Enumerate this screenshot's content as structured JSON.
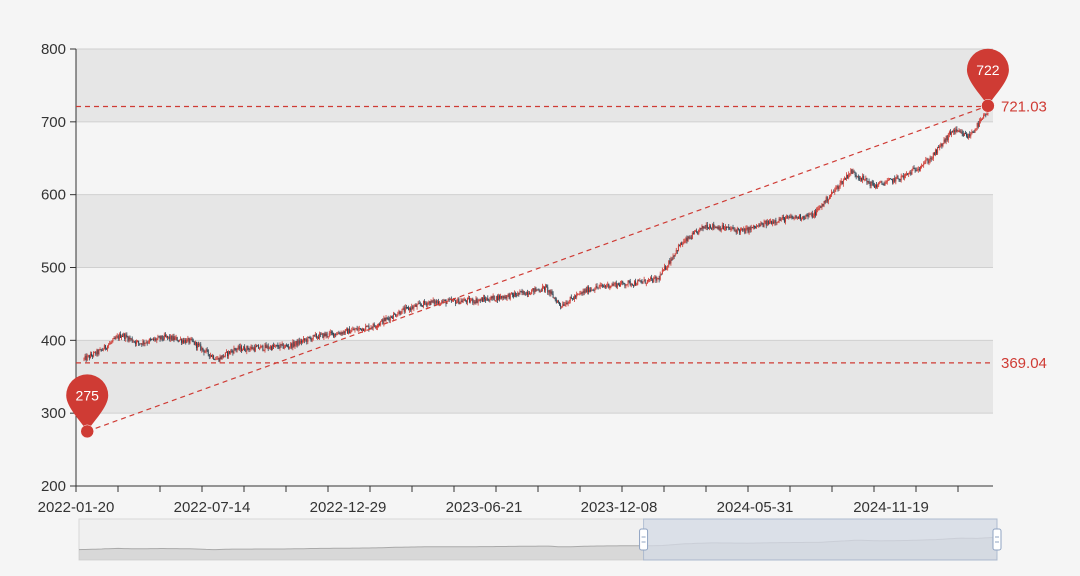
{
  "chart_data": {
    "type": "candlestick",
    "title": "",
    "xlabel": "",
    "ylabel": "",
    "ylim": [
      200,
      800
    ],
    "yticks": [
      200,
      300,
      400,
      500,
      600,
      700,
      800
    ],
    "grid": "alternating bands",
    "start_date": "2022-01-20",
    "end_date": "2025-04-17",
    "xtick_labels": [
      "2022-01-20",
      "2022-07-14",
      "2022-12-29",
      "2023-06-21",
      "2023-12-08",
      "2024-05-31",
      "2024-11-19"
    ],
    "colors": {
      "up": "#cf3b34",
      "down": "#2f4554",
      "band_dark": "#e6e6e6",
      "band_light": "#f5f5f5",
      "axis": "#333333",
      "markline": "#cf3b34",
      "zoom_fill": "#d5dbe6",
      "zoom_area": "#c8c8c8"
    },
    "trend_points": [
      {
        "date": "2022-01-20",
        "close": 374
      },
      {
        "date": "2022-02-10",
        "close": 385
      },
      {
        "date": "2022-03-10",
        "close": 408
      },
      {
        "date": "2022-04-01",
        "close": 396
      },
      {
        "date": "2022-05-06",
        "close": 404
      },
      {
        "date": "2022-06-10",
        "close": 398
      },
      {
        "date": "2022-07-01",
        "close": 382
      },
      {
        "date": "2022-07-14",
        "close": 374
      },
      {
        "date": "2022-08-05",
        "close": 388
      },
      {
        "date": "2022-10-14",
        "close": 392
      },
      {
        "date": "2022-11-18",
        "close": 405
      },
      {
        "date": "2022-12-29",
        "close": 412
      },
      {
        "date": "2023-02-03",
        "close": 420
      },
      {
        "date": "2023-03-10",
        "close": 440
      },
      {
        "date": "2023-04-14",
        "close": 452
      },
      {
        "date": "2023-06-21",
        "close": 455
      },
      {
        "date": "2023-08-04",
        "close": 462
      },
      {
        "date": "2023-09-15",
        "close": 472
      },
      {
        "date": "2023-10-05",
        "close": 448
      },
      {
        "date": "2023-11-10",
        "close": 470
      },
      {
        "date": "2023-12-08",
        "close": 476
      },
      {
        "date": "2024-01-19",
        "close": 480
      },
      {
        "date": "2024-02-09",
        "close": 484
      },
      {
        "date": "2024-03-08",
        "close": 530
      },
      {
        "date": "2024-04-12",
        "close": 558
      },
      {
        "date": "2024-05-31",
        "close": 550
      },
      {
        "date": "2024-07-12",
        "close": 565
      },
      {
        "date": "2024-08-30",
        "close": 572
      },
      {
        "date": "2024-10-18",
        "close": 632
      },
      {
        "date": "2024-11-19",
        "close": 612
      },
      {
        "date": "2024-12-27",
        "close": 625
      },
      {
        "date": "2025-01-31",
        "close": 650
      },
      {
        "date": "2025-02-28",
        "close": 688
      },
      {
        "date": "2025-03-21",
        "close": 680
      },
      {
        "date": "2025-04-17",
        "close": 715
      }
    ],
    "mark_points": {
      "min": {
        "label": "275",
        "value": 275,
        "date": "2022-01-25"
      },
      "max": {
        "label": "722",
        "value": 722,
        "date": "2025-04-16"
      }
    },
    "mark_lines": [
      {
        "label": "721.03",
        "value": 721.03
      },
      {
        "label": "369.04",
        "value": 369.04
      }
    ],
    "data_zoom": {
      "start_fraction": 0.615,
      "end_fraction": 1.0
    }
  }
}
